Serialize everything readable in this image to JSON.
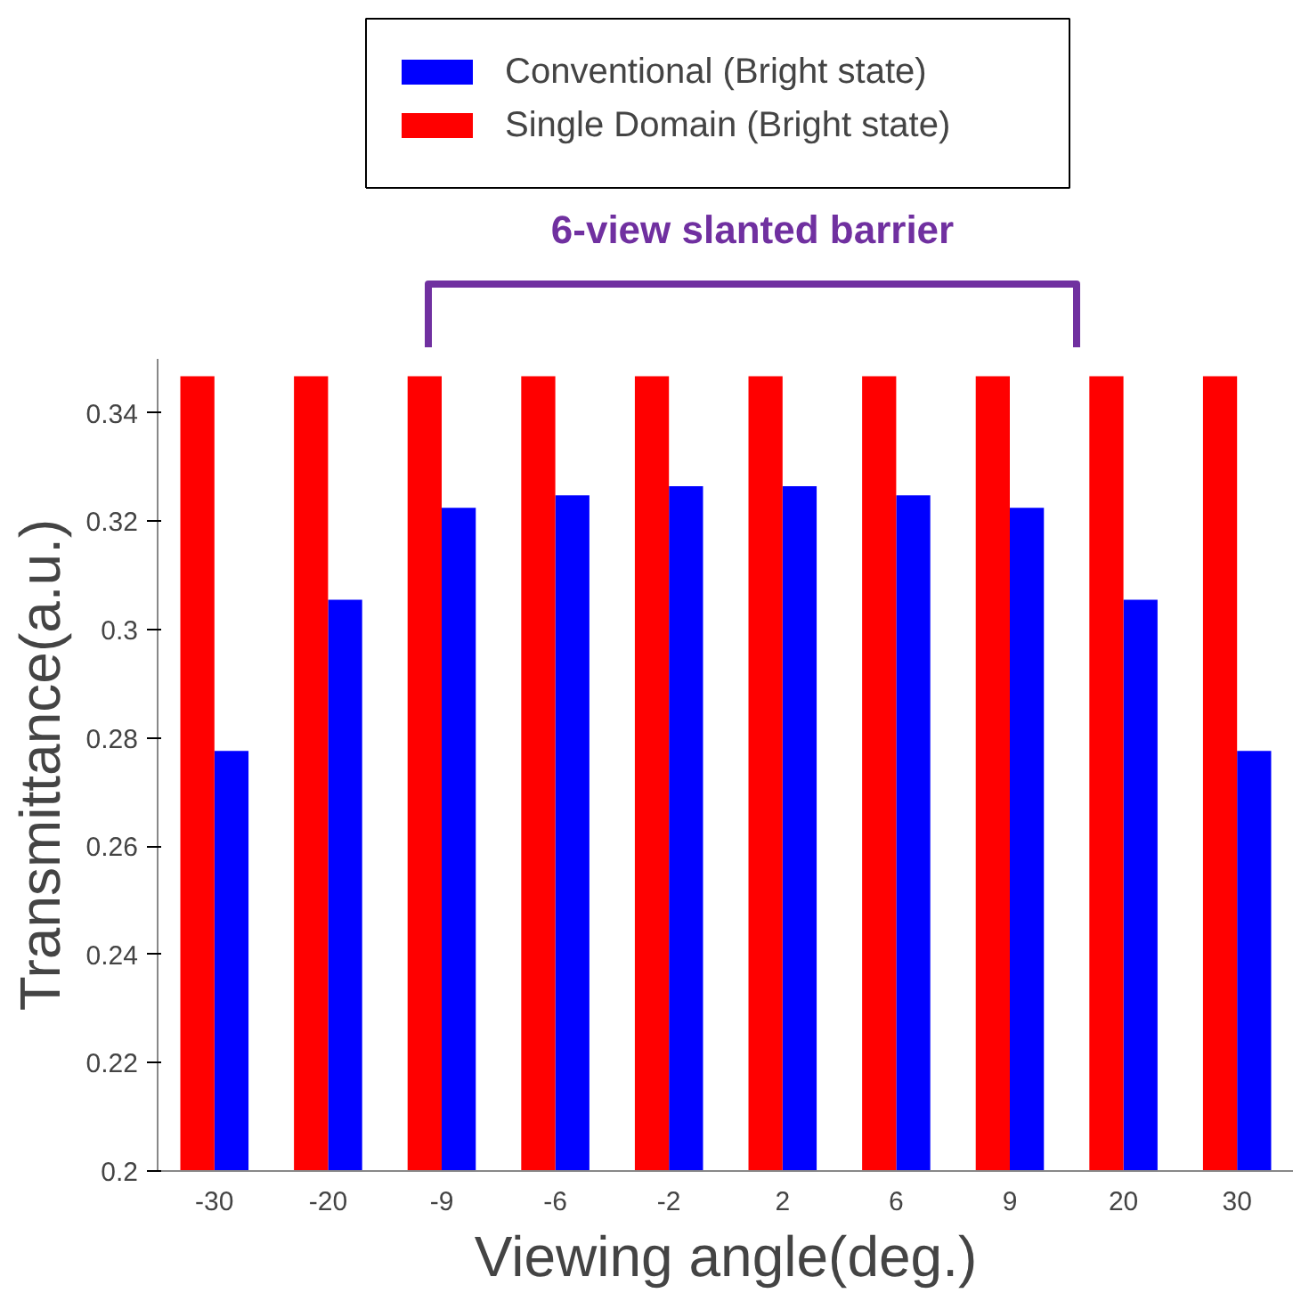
{
  "chart_data": {
    "type": "bar",
    "xlabel": "Viewing angle(deg.)",
    "ylabel": "Transmittance(a.u.)",
    "categories": [
      "-30",
      "-20",
      "-9",
      "-6",
      "-2",
      "2",
      "6",
      "9",
      "20",
      "30"
    ],
    "series": [
      {
        "name": "Conventional (Bright state)",
        "color": "#0000ff",
        "values": [
          0.2776,
          0.3055,
          0.3225,
          0.3248,
          0.3265,
          0.3265,
          0.3248,
          0.3225,
          0.3055,
          0.2776
        ]
      },
      {
        "name": "Single Domain (Bright state)",
        "color": "#ff0000",
        "values": [
          0.3468,
          0.3468,
          0.3468,
          0.3468,
          0.3468,
          0.3468,
          0.3468,
          0.3468,
          0.3468,
          0.3468
        ]
      }
    ],
    "ylim": [
      0.2,
      0.35
    ],
    "yticks": [
      0.2,
      0.22,
      0.24,
      0.26,
      0.28,
      0.3,
      0.32,
      0.34
    ],
    "grid": false,
    "legend": "top",
    "annotations": [
      "6-view slanted barrier"
    ]
  }
}
